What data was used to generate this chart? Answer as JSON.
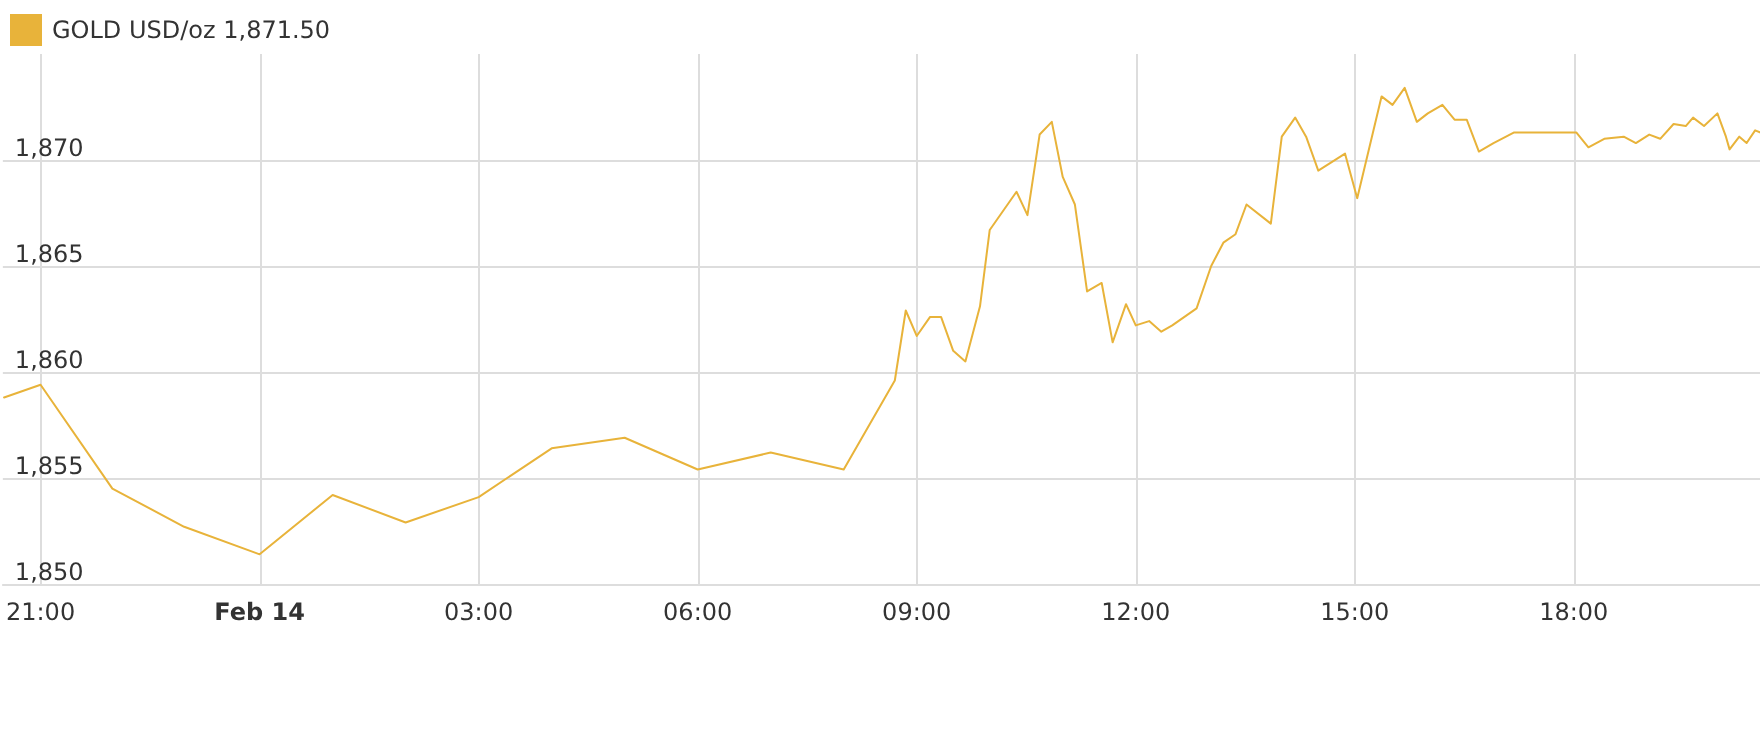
{
  "chart_data": {
    "type": "line",
    "legend": "top left",
    "grid": true,
    "marker": "none",
    "line_style": "solid",
    "xlim": [
      "--02-13T20:29",
      "--02-14T20:33"
    ],
    "xticks": [
      {
        "value": "--02-13T21:00",
        "label": "21:00"
      },
      {
        "value": "--02-14T00:00",
        "label": "Feb 14"
      },
      {
        "value": "--02-14T03:00",
        "label": "03:00"
      },
      {
        "value": "--02-14T06:00",
        "label": "06:00"
      },
      {
        "value": "--02-14T09:00",
        "label": "09:00"
      },
      {
        "value": "--02-14T12:00",
        "label": "12:00"
      },
      {
        "value": "--02-14T15:00",
        "label": "15:00"
      },
      {
        "value": "--02-14T18:00",
        "label": "18:00"
      }
    ],
    "ylim": [
      1850,
      1875
    ],
    "yticks": [
      {
        "value": 1850,
        "label": "1,850"
      },
      {
        "value": 1855,
        "label": "1,855"
      },
      {
        "value": 1860,
        "label": "1,860"
      },
      {
        "value": 1865,
        "label": "1,865"
      },
      {
        "value": 1870,
        "label": "1,870"
      }
    ],
    "series": [
      {
        "name": "GOLD USD/oz 1,871.50",
        "color": "#e8b33a",
        "x": [
          "--02-13T20:30",
          "--02-13T21:00",
          "--02-13T21:59",
          "--02-13T22:58",
          "--02-14T00:00",
          "--02-14T01:00",
          "--02-14T02:00",
          "--02-14T03:00",
          "--02-14T04:00",
          "--02-14T05:00",
          "--02-14T06:00",
          "--02-14T07:00",
          "--02-14T08:00",
          "--02-14T08:42",
          "--02-14T08:51",
          "--02-14T09:00",
          "--02-14T09:11",
          "--02-14T09:20",
          "--02-14T09:30",
          "--02-14T09:40",
          "--02-14T09:52",
          "--02-14T10:00",
          "--02-14T10:22",
          "--02-14T10:31",
          "--02-14T10:41",
          "--02-14T10:51",
          "--02-14T11:00",
          "--02-14T11:10",
          "--02-14T11:20",
          "--02-14T11:32",
          "--02-14T11:41",
          "--02-14T11:52",
          "--02-14T12:00",
          "--02-14T12:11",
          "--02-14T12:21",
          "--02-14T12:30",
          "--02-14T12:50",
          "--02-14T13:02",
          "--02-14T13:12",
          "--02-14T13:22",
          "--02-14T13:31",
          "--02-14T13:51",
          "--02-14T14:00",
          "--02-14T14:11",
          "--02-14T14:20",
          "--02-14T14:30",
          "--02-14T14:52",
          "--02-14T15:02",
          "--02-14T15:22",
          "--02-14T15:31",
          "--02-14T15:41",
          "--02-14T15:51",
          "--02-14T16:00",
          "--02-14T16:12",
          "--02-14T16:22",
          "--02-14T16:32",
          "--02-14T16:42",
          "--02-14T16:54",
          "--02-14T17:11",
          "--02-14T18:02",
          "--02-14T18:12",
          "--02-14T18:25",
          "--02-14T18:41",
          "--02-14T18:51",
          "--02-14T19:02",
          "--02-14T19:11",
          "--02-14T19:22",
          "--02-14T19:32",
          "--02-14T19:38",
          "--02-14T19:47",
          "--02-14T19:58",
          "--02-14T20:05",
          "--02-14T20:08",
          "--02-14T20:16",
          "--02-14T20:22",
          "--02-14T20:29",
          "--02-14T20:33"
        ],
        "values": [
          1858.8,
          1859.4,
          1854.5,
          1852.7,
          1851.4,
          1854.2,
          1852.9,
          1854.1,
          1856.4,
          1856.9,
          1855.4,
          1856.2,
          1855.4,
          1859.6,
          1862.9,
          1861.7,
          1862.6,
          1862.6,
          1861.0,
          1860.5,
          1863.1,
          1866.7,
          1868.5,
          1867.4,
          1871.2,
          1871.8,
          1869.2,
          1867.9,
          1863.8,
          1864.2,
          1861.4,
          1863.2,
          1862.2,
          1862.4,
          1861.9,
          1862.2,
          1863.0,
          1865.0,
          1866.1,
          1866.5,
          1867.9,
          1867.0,
          1871.1,
          1872.0,
          1871.1,
          1869.5,
          1870.3,
          1868.2,
          1873.0,
          1872.6,
          1873.4,
          1871.8,
          1872.2,
          1872.6,
          1871.9,
          1871.9,
          1870.4,
          1870.8,
          1871.3,
          1871.3,
          1870.6,
          1871.0,
          1871.1,
          1870.8,
          1871.2,
          1871.0,
          1871.7,
          1871.6,
          1872.0,
          1871.6,
          1872.2,
          1871.1,
          1870.5,
          1871.1,
          1870.8,
          1871.4,
          1871.3
        ]
      }
    ]
  }
}
